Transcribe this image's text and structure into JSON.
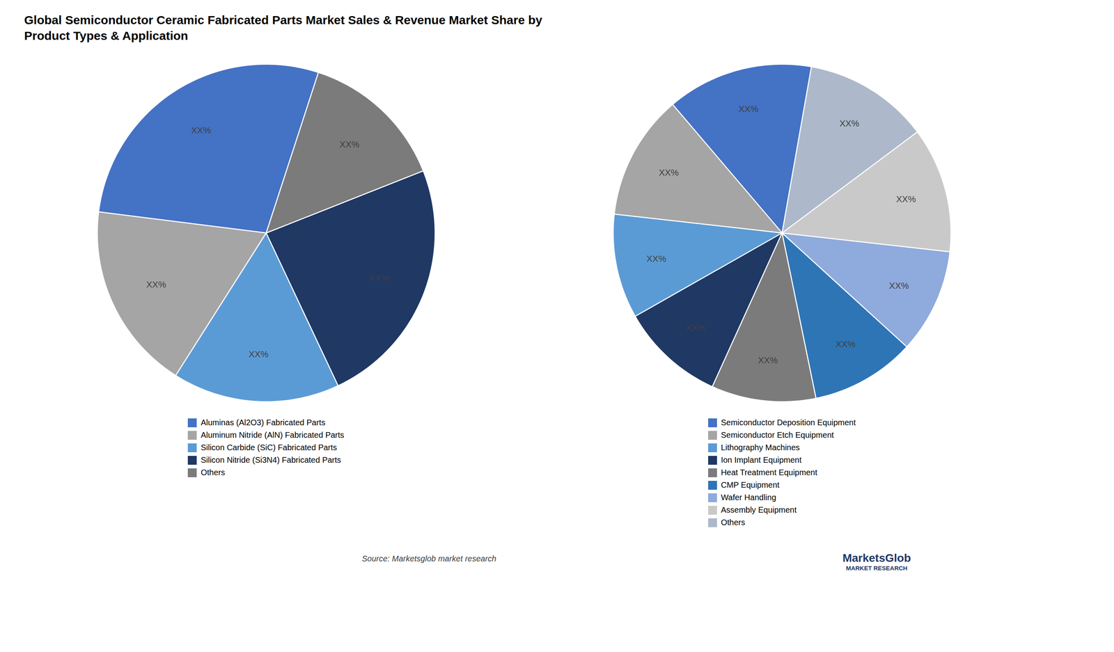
{
  "title": "Global Semiconductor Ceramic Fabricated Parts Market Sales & Revenue Market Share by\nProduct Types & Application",
  "annotations": [
    "Source: Marketsglob market research",
    "MarketsGlob",
    "MARKET RESEARCH"
  ],
  "chart_data": [
    {
      "type": "pie",
      "categories": [
        "Aluminas (Al2O3) Fabricated Parts",
        "Aluminum Nitride (AlN) Fabricated Parts",
        "Silicon Carbide (SiC) Fabricated Parts",
        "Silicon Nitride (Si3N4) Fabricated Parts",
        "Others"
      ],
      "values": [
        28,
        18,
        16,
        24,
        14
      ],
      "value_labels": [
        "XX%",
        "XX%",
        "XX%",
        "XX%",
        "XX%"
      ],
      "data_labels": true,
      "colors": [
        "#4472C4",
        "#A5A5A5",
        "#5B9BD5",
        "#1F3864",
        "#7B7B7B"
      ],
      "legend": "bottom"
    },
    {
      "type": "pie",
      "categories": [
        "Semiconductor Deposition Equipment",
        "Semiconductor Etch Equipment",
        "Lithography Machines",
        "Ion Implant Equipment",
        "Heat Treatment Equipment",
        "CMP Equipment",
        "Wafer Handling",
        "Assembly Equipment",
        "Others"
      ],
      "values": [
        14,
        12,
        10,
        10,
        10,
        10,
        10,
        12,
        12
      ],
      "value_labels": [
        "XX%",
        "XX%",
        "XX%",
        "XX%",
        "XX%",
        "XX%",
        "XX%",
        "XX%",
        "XX%"
      ],
      "data_labels": true,
      "colors": [
        "#4472C4",
        "#A5A5A5",
        "#5B9BD5",
        "#1F3864",
        "#7B7B7B",
        "#2E75B6",
        "#8FAADC",
        "#C9C9C9",
        "#ADB9CA"
      ],
      "legend": "bottom"
    }
  ]
}
